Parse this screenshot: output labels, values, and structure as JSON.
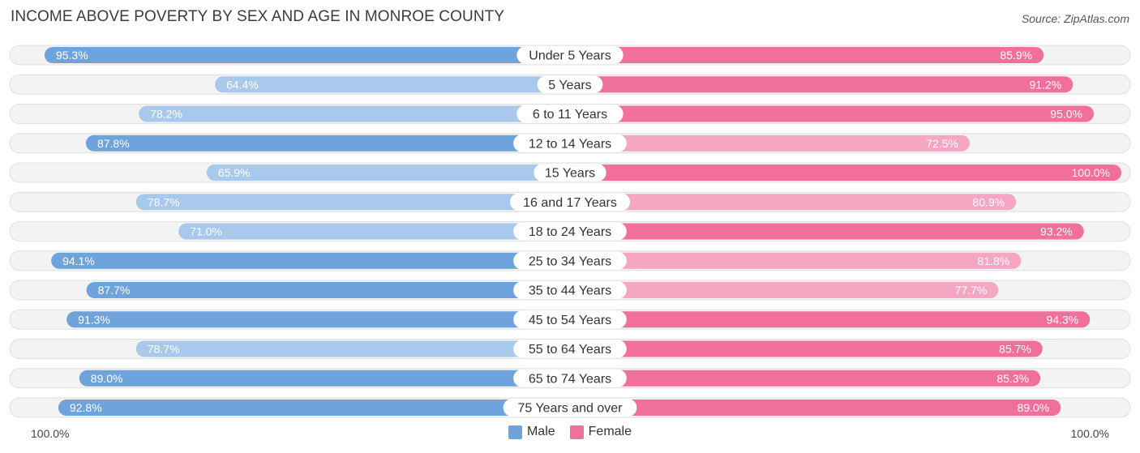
{
  "title": "INCOME ABOVE POVERTY BY SEX AND AGE IN MONROE COUNTY",
  "source": "Source: ZipAtlas.com",
  "axis": {
    "left_label": "100.0%",
    "right_label": "100.0%"
  },
  "legend": [
    {
      "label": "Male",
      "color": "#6fa3dc"
    },
    {
      "label": "Female",
      "color": "#f06f9b"
    }
  ],
  "colors": {
    "male_strong": "#6fa3dc",
    "male_light": "#a9c9ec",
    "female_strong": "#f06f9b",
    "female_light": "#f5a6c2",
    "track": "#f0f0f0"
  },
  "chart_data": {
    "type": "bar",
    "orientation": "diverging-horizontal",
    "title": "INCOME ABOVE POVERTY BY SEX AND AGE IN MONROE COUNTY",
    "categories": [
      "Under 5 Years",
      "5 Years",
      "6 to 11 Years",
      "12 to 14 Years",
      "15 Years",
      "16 and 17 Years",
      "18 to 24 Years",
      "25 to 34 Years",
      "35 to 44 Years",
      "45 to 54 Years",
      "55 to 64 Years",
      "65 to 74 Years",
      "75 Years and over"
    ],
    "series": [
      {
        "name": "Male",
        "values": [
          95.3,
          64.4,
          78.2,
          87.8,
          65.9,
          78.7,
          71.0,
          94.1,
          87.7,
          91.3,
          78.7,
          89.0,
          92.8
        ]
      },
      {
        "name": "Female",
        "values": [
          85.9,
          91.2,
          95.0,
          72.5,
          100.0,
          80.9,
          93.2,
          81.8,
          77.7,
          94.3,
          85.7,
          85.3,
          89.0
        ]
      }
    ],
    "labels_male": [
      "95.3%",
      "64.4%",
      "78.2%",
      "87.8%",
      "65.9%",
      "78.7%",
      "71.0%",
      "94.1%",
      "87.7%",
      "91.3%",
      "78.7%",
      "89.0%",
      "92.8%"
    ],
    "labels_female": [
      "85.9%",
      "91.2%",
      "95.0%",
      "72.5%",
      "100.0%",
      "80.9%",
      "93.2%",
      "81.8%",
      "77.7%",
      "94.3%",
      "85.7%",
      "85.3%",
      "89.0%"
    ],
    "xlim": [
      0,
      100
    ],
    "legend_position": "bottom-center"
  }
}
